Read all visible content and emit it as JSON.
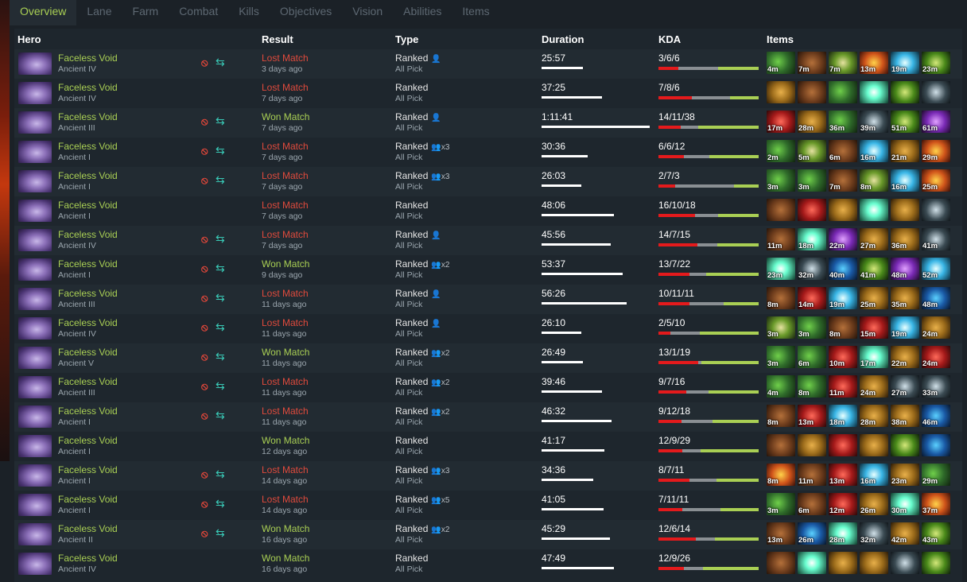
{
  "tabs": [
    "Overview",
    "Lane",
    "Farm",
    "Combat",
    "Kills",
    "Objectives",
    "Vision",
    "Abilities",
    "Items"
  ],
  "headers": {
    "hero": "Hero",
    "result": "Result",
    "type": "Type",
    "duration": "Duration",
    "kda": "KDA",
    "items": "Items"
  },
  "matches": [
    {
      "hero": "Faceless Void",
      "rank": "Ancient IV",
      "party_icons": true,
      "result": "Lost Match",
      "when": "3 days ago",
      "type": "Ranked",
      "party": "solo",
      "party_text": "",
      "mode": "All Pick",
      "duration": "25:57",
      "dur_frac": 0.38,
      "kda": "3/6/6",
      "k": 3,
      "d": 6,
      "a": 6,
      "items": [
        {
          "c": "c1",
          "t": "4m"
        },
        {
          "c": "c2",
          "t": "7m"
        },
        {
          "c": "c3",
          "t": "7m"
        },
        {
          "c": "c4",
          "t": "13m"
        },
        {
          "c": "c5",
          "t": "19m"
        },
        {
          "c": "c6",
          "t": "23m"
        }
      ]
    },
    {
      "hero": "Faceless Void",
      "rank": "Ancient IV",
      "party_icons": false,
      "result": "Lost Match",
      "when": "7 days ago",
      "type": "Ranked",
      "party": "",
      "party_text": "",
      "mode": "All Pick",
      "duration": "37:25",
      "dur_frac": 0.56,
      "kda": "7/8/6",
      "k": 7,
      "d": 8,
      "a": 6,
      "items": [
        {
          "c": "c7",
          "t": ""
        },
        {
          "c": "c2",
          "t": ""
        },
        {
          "c": "c1",
          "t": ""
        },
        {
          "c": "c12",
          "t": ""
        },
        {
          "c": "c6",
          "t": ""
        },
        {
          "c": "c8",
          "t": ""
        }
      ]
    },
    {
      "hero": "Faceless Void",
      "rank": "Ancient III",
      "party_icons": true,
      "result": "Won Match",
      "when": "7 days ago",
      "type": "Ranked",
      "party": "solo",
      "party_text": "",
      "mode": "All Pick",
      "duration": "1:11:41",
      "dur_frac": 1.0,
      "kda": "14/11/38",
      "k": 14,
      "d": 11,
      "a": 38,
      "items": [
        {
          "c": "c9",
          "t": "17m"
        },
        {
          "c": "c7",
          "t": "28m"
        },
        {
          "c": "c1",
          "t": "36m"
        },
        {
          "c": "c8",
          "t": "39m"
        },
        {
          "c": "c6",
          "t": "51m"
        },
        {
          "c": "c10",
          "t": "61m"
        }
      ]
    },
    {
      "hero": "Faceless Void",
      "rank": "Ancient I",
      "party_icons": true,
      "result": "Lost Match",
      "when": "7 days ago",
      "type": "Ranked",
      "party": "group",
      "party_text": "x3",
      "mode": "All Pick",
      "duration": "30:36",
      "dur_frac": 0.43,
      "kda": "6/6/12",
      "k": 6,
      "d": 6,
      "a": 12,
      "items": [
        {
          "c": "c1",
          "t": "2m"
        },
        {
          "c": "c3",
          "t": "5m"
        },
        {
          "c": "c2",
          "t": "6m"
        },
        {
          "c": "c5",
          "t": "16m"
        },
        {
          "c": "c7",
          "t": "21m"
        },
        {
          "c": "c4",
          "t": "29m"
        }
      ]
    },
    {
      "hero": "Faceless Void",
      "rank": "Ancient I",
      "party_icons": true,
      "result": "Lost Match",
      "when": "7 days ago",
      "type": "Ranked",
      "party": "group",
      "party_text": "x3",
      "mode": "All Pick",
      "duration": "26:03",
      "dur_frac": 0.37,
      "kda": "2/7/3",
      "k": 2,
      "d": 7,
      "a": 3,
      "items": [
        {
          "c": "c1",
          "t": "3m"
        },
        {
          "c": "c1",
          "t": "3m"
        },
        {
          "c": "c2",
          "t": "7m"
        },
        {
          "c": "c3",
          "t": "8m"
        },
        {
          "c": "c5",
          "t": "16m"
        },
        {
          "c": "c4",
          "t": "25m"
        }
      ]
    },
    {
      "hero": "Faceless Void",
      "rank": "Ancient I",
      "party_icons": false,
      "result": "Lost Match",
      "when": "7 days ago",
      "type": "Ranked",
      "party": "",
      "party_text": "",
      "mode": "All Pick",
      "duration": "48:06",
      "dur_frac": 0.67,
      "kda": "16/10/18",
      "k": 16,
      "d": 10,
      "a": 18,
      "items": [
        {
          "c": "c2",
          "t": ""
        },
        {
          "c": "c9",
          "t": ""
        },
        {
          "c": "c7",
          "t": ""
        },
        {
          "c": "c12",
          "t": ""
        },
        {
          "c": "c7",
          "t": ""
        },
        {
          "c": "c8",
          "t": ""
        }
      ]
    },
    {
      "hero": "Faceless Void",
      "rank": "Ancient IV",
      "party_icons": true,
      "result": "Lost Match",
      "when": "7 days ago",
      "type": "Ranked",
      "party": "solo",
      "party_text": "",
      "mode": "All Pick",
      "duration": "45:56",
      "dur_frac": 0.64,
      "kda": "14/7/15",
      "k": 14,
      "d": 7,
      "a": 15,
      "items": [
        {
          "c": "c2",
          "t": "11m"
        },
        {
          "c": "c12",
          "t": "18m"
        },
        {
          "c": "c10",
          "t": "22m"
        },
        {
          "c": "c7",
          "t": "27m"
        },
        {
          "c": "c7",
          "t": "36m"
        },
        {
          "c": "c8",
          "t": "41m"
        }
      ]
    },
    {
      "hero": "Faceless Void",
      "rank": "Ancient I",
      "party_icons": true,
      "result": "Won Match",
      "when": "9 days ago",
      "type": "Ranked",
      "party": "group",
      "party_text": "x2",
      "mode": "All Pick",
      "duration": "53:37",
      "dur_frac": 0.75,
      "kda": "13/7/22",
      "k": 13,
      "d": 7,
      "a": 22,
      "items": [
        {
          "c": "c12",
          "t": "23m"
        },
        {
          "c": "c8",
          "t": "32m"
        },
        {
          "c": "c11",
          "t": "40m"
        },
        {
          "c": "c6",
          "t": "41m"
        },
        {
          "c": "c10",
          "t": "48m"
        },
        {
          "c": "c5",
          "t": "52m"
        }
      ]
    },
    {
      "hero": "Faceless Void",
      "rank": "Ancient III",
      "party_icons": true,
      "result": "Lost Match",
      "when": "11 days ago",
      "type": "Ranked",
      "party": "solo",
      "party_text": "",
      "mode": "All Pick",
      "duration": "56:26",
      "dur_frac": 0.79,
      "kda": "10/11/11",
      "k": 10,
      "d": 11,
      "a": 11,
      "items": [
        {
          "c": "c2",
          "t": "8m"
        },
        {
          "c": "c9",
          "t": "14m"
        },
        {
          "c": "c5",
          "t": "19m"
        },
        {
          "c": "c7",
          "t": "25m"
        },
        {
          "c": "c7",
          "t": "35m"
        },
        {
          "c": "c11",
          "t": "48m"
        }
      ]
    },
    {
      "hero": "Faceless Void",
      "rank": "Ancient IV",
      "party_icons": true,
      "result": "Lost Match",
      "when": "11 days ago",
      "type": "Ranked",
      "party": "solo",
      "party_text": "",
      "mode": "All Pick",
      "duration": "26:10",
      "dur_frac": 0.37,
      "kda": "2/5/10",
      "k": 2,
      "d": 5,
      "a": 10,
      "items": [
        {
          "c": "c3",
          "t": "3m"
        },
        {
          "c": "c1",
          "t": "3m"
        },
        {
          "c": "c2",
          "t": "8m"
        },
        {
          "c": "c9",
          "t": "15m"
        },
        {
          "c": "c5",
          "t": "19m"
        },
        {
          "c": "c7",
          "t": "24m"
        }
      ]
    },
    {
      "hero": "Faceless Void",
      "rank": "Ancient V",
      "party_icons": true,
      "result": "Won Match",
      "when": "11 days ago",
      "type": "Ranked",
      "party": "group",
      "party_text": "x2",
      "mode": "All Pick",
      "duration": "26:49",
      "dur_frac": 0.38,
      "kda": "13/1/19",
      "k": 13,
      "d": 1,
      "a": 19,
      "items": [
        {
          "c": "c1",
          "t": "3m"
        },
        {
          "c": "c1",
          "t": "6m"
        },
        {
          "c": "c9",
          "t": "10m"
        },
        {
          "c": "c12",
          "t": "17m"
        },
        {
          "c": "c7",
          "t": "22m"
        },
        {
          "c": "c9",
          "t": "24m"
        }
      ]
    },
    {
      "hero": "Faceless Void",
      "rank": "Ancient III",
      "party_icons": true,
      "result": "Lost Match",
      "when": "11 days ago",
      "type": "Ranked",
      "party": "group",
      "party_text": "x2",
      "mode": "All Pick",
      "duration": "39:46",
      "dur_frac": 0.56,
      "kda": "9/7/16",
      "k": 9,
      "d": 7,
      "a": 16,
      "items": [
        {
          "c": "c1",
          "t": "4m"
        },
        {
          "c": "c1",
          "t": "8m"
        },
        {
          "c": "c9",
          "t": "11m"
        },
        {
          "c": "c7",
          "t": "24m"
        },
        {
          "c": "c8",
          "t": "27m"
        },
        {
          "c": "c8",
          "t": "33m"
        }
      ]
    },
    {
      "hero": "Faceless Void",
      "rank": "Ancient I",
      "party_icons": true,
      "result": "Lost Match",
      "when": "11 days ago",
      "type": "Ranked",
      "party": "group",
      "party_text": "x2",
      "mode": "All Pick",
      "duration": "46:32",
      "dur_frac": 0.65,
      "kda": "9/12/18",
      "k": 9,
      "d": 12,
      "a": 18,
      "items": [
        {
          "c": "c2",
          "t": "8m"
        },
        {
          "c": "c9",
          "t": "13m"
        },
        {
          "c": "c5",
          "t": "18m"
        },
        {
          "c": "c7",
          "t": "28m"
        },
        {
          "c": "c7",
          "t": "38m"
        },
        {
          "c": "c11",
          "t": "46m"
        }
      ]
    },
    {
      "hero": "Faceless Void",
      "rank": "Ancient I",
      "party_icons": false,
      "result": "Won Match",
      "when": "12 days ago",
      "type": "Ranked",
      "party": "",
      "party_text": "",
      "mode": "All Pick",
      "duration": "41:17",
      "dur_frac": 0.58,
      "kda": "12/9/29",
      "k": 12,
      "d": 9,
      "a": 29,
      "items": [
        {
          "c": "c2",
          "t": ""
        },
        {
          "c": "c7",
          "t": ""
        },
        {
          "c": "c9",
          "t": ""
        },
        {
          "c": "c7",
          "t": ""
        },
        {
          "c": "c6",
          "t": ""
        },
        {
          "c": "c11",
          "t": ""
        }
      ]
    },
    {
      "hero": "Faceless Void",
      "rank": "Ancient I",
      "party_icons": true,
      "result": "Lost Match",
      "when": "14 days ago",
      "type": "Ranked",
      "party": "group",
      "party_text": "x3",
      "mode": "All Pick",
      "duration": "34:36",
      "dur_frac": 0.48,
      "kda": "8/7/11",
      "k": 8,
      "d": 7,
      "a": 11,
      "items": [
        {
          "c": "c4",
          "t": "8m"
        },
        {
          "c": "c2",
          "t": "11m"
        },
        {
          "c": "c9",
          "t": "13m"
        },
        {
          "c": "c5",
          "t": "16m"
        },
        {
          "c": "c7",
          "t": "23m"
        },
        {
          "c": "c1",
          "t": "29m"
        }
      ]
    },
    {
      "hero": "Faceless Void",
      "rank": "Ancient I",
      "party_icons": true,
      "result": "Lost Match",
      "when": "14 days ago",
      "type": "Ranked",
      "party": "group",
      "party_text": "x5",
      "mode": "All Pick",
      "duration": "41:05",
      "dur_frac": 0.57,
      "kda": "7/11/11",
      "k": 7,
      "d": 11,
      "a": 11,
      "items": [
        {
          "c": "c1",
          "t": "3m"
        },
        {
          "c": "c2",
          "t": "6m"
        },
        {
          "c": "c9",
          "t": "12m"
        },
        {
          "c": "c7",
          "t": "26m"
        },
        {
          "c": "c12",
          "t": "30m"
        },
        {
          "c": "c4",
          "t": "37m"
        }
      ]
    },
    {
      "hero": "Faceless Void",
      "rank": "Ancient II",
      "party_icons": true,
      "result": "Won Match",
      "when": "16 days ago",
      "type": "Ranked",
      "party": "group",
      "party_text": "x2",
      "mode": "All Pick",
      "duration": "45:29",
      "dur_frac": 0.63,
      "kda": "12/6/14",
      "k": 12,
      "d": 6,
      "a": 14,
      "items": [
        {
          "c": "c2",
          "t": "13m"
        },
        {
          "c": "c11",
          "t": "26m"
        },
        {
          "c": "c12",
          "t": "28m"
        },
        {
          "c": "c8",
          "t": "32m"
        },
        {
          "c": "c7",
          "t": "42m"
        },
        {
          "c": "c6",
          "t": "43m"
        }
      ]
    },
    {
      "hero": "Faceless Void",
      "rank": "Ancient IV",
      "party_icons": false,
      "result": "Won Match",
      "when": "16 days ago",
      "type": "Ranked",
      "party": "",
      "party_text": "",
      "mode": "All Pick",
      "duration": "47:49",
      "dur_frac": 0.67,
      "kda": "12/9/26",
      "k": 12,
      "d": 9,
      "a": 26,
      "items": [
        {
          "c": "c2",
          "t": ""
        },
        {
          "c": "c12",
          "t": ""
        },
        {
          "c": "c7",
          "t": ""
        },
        {
          "c": "c7",
          "t": ""
        },
        {
          "c": "c8",
          "t": ""
        },
        {
          "c": "c6",
          "t": ""
        }
      ]
    }
  ]
}
